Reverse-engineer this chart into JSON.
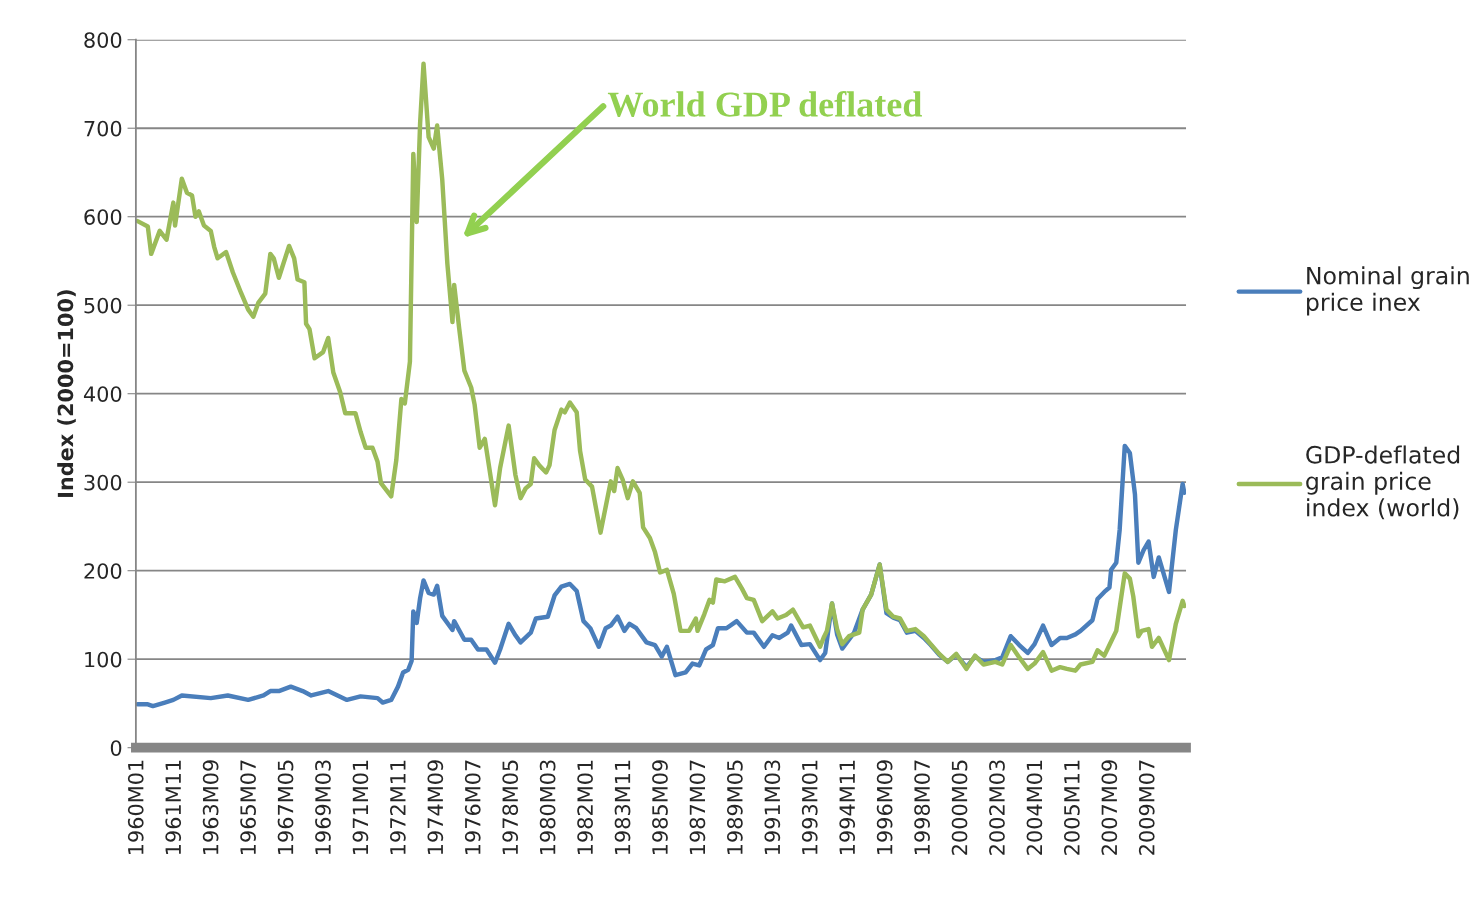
{
  "chart_data": {
    "type": "line",
    "ylabel": "Index (2000=100)",
    "ylim": [
      0,
      800
    ],
    "yticks": [
      0,
      100,
      200,
      300,
      400,
      500,
      600,
      700,
      800
    ],
    "xlim": [
      "1959-12",
      "2011-05"
    ],
    "xticks": [
      {
        "value": "1960-01",
        "label": "1960M01"
      },
      {
        "value": "1961-11",
        "label": "1961M11"
      },
      {
        "value": "1963-09",
        "label": "1963M09"
      },
      {
        "value": "1965-07",
        "label": "1965M07"
      },
      {
        "value": "1967-05",
        "label": "1967M05"
      },
      {
        "value": "1969-03",
        "label": "1969M03"
      },
      {
        "value": "1971-01",
        "label": "1971M01"
      },
      {
        "value": "1972-11",
        "label": "1972M11"
      },
      {
        "value": "1974-09",
        "label": "1974M09"
      },
      {
        "value": "1976-07",
        "label": "1976M07"
      },
      {
        "value": "1978-05",
        "label": "1978M05"
      },
      {
        "value": "1980-03",
        "label": "1980M03"
      },
      {
        "value": "1982-01",
        "label": "1982M01"
      },
      {
        "value": "1983-11",
        "label": "1983M11"
      },
      {
        "value": "1985-09",
        "label": "1985M09"
      },
      {
        "value": "1987-07",
        "label": "1987M07"
      },
      {
        "value": "1989-05",
        "label": "1989M05"
      },
      {
        "value": "1991-03",
        "label": "1991M03"
      },
      {
        "value": "1993-01",
        "label": "1993M01"
      },
      {
        "value": "1994-11",
        "label": "1994M11"
      },
      {
        "value": "1996-09",
        "label": "1996M09"
      },
      {
        "value": "1998-07",
        "label": "1998M07"
      },
      {
        "value": "2000-05",
        "label": "2000M05"
      },
      {
        "value": "2002-03",
        "label": "2002M03"
      },
      {
        "value": "2004-01",
        "label": "2004M01"
      },
      {
        "value": "2005-11",
        "label": "2005M11"
      },
      {
        "value": "2007-09",
        "label": "2007M09"
      },
      {
        "value": "2009-07",
        "label": "2009M07"
      }
    ],
    "grid": "y",
    "legend": "right",
    "marker": "none",
    "line_style": "solid",
    "annotations": [
      "World GDP deflated"
    ],
    "series": [
      {
        "name": "Nominal grain price inex",
        "color": "#4a7ebb",
        "x": [
          "1960-01",
          "1960-07",
          "1960-10",
          "1961-05",
          "1961-10",
          "1962-03",
          "1963-08",
          "1964-06",
          "1965-06",
          "1966-03",
          "1966-07",
          "1966-12",
          "1967-07",
          "1968-02",
          "1968-07",
          "1969-05",
          "1970-04",
          "1970-12",
          "1971-10",
          "1972-01",
          "1972-06",
          "1972-10",
          "1973-01",
          "1973-04",
          "1973-06",
          "1973-07",
          "1973-09",
          "1973-11",
          "1974-01",
          "1974-04",
          "1974-07",
          "1974-09",
          "1974-12",
          "1975-06",
          "1975-07",
          "1976-01",
          "1976-05",
          "1976-09",
          "1977-02",
          "1977-07",
          "1977-10",
          "1978-03",
          "1978-07",
          "1978-10",
          "1979-04",
          "1979-07",
          "1980-02",
          "1980-06",
          "1980-10",
          "1981-03",
          "1981-07",
          "1981-11",
          "1982-03",
          "1982-08",
          "1982-12",
          "1983-03",
          "1983-07",
          "1983-11",
          "1984-02",
          "1984-06",
          "1984-12",
          "1985-05",
          "1985-09",
          "1985-12",
          "1986-05",
          "1986-11",
          "1987-03",
          "1987-07",
          "1987-11",
          "1988-03",
          "1988-06",
          "1988-11",
          "1989-05",
          "1989-11",
          "1990-03",
          "1990-09",
          "1991-02",
          "1991-06",
          "1991-11",
          "1992-01",
          "1992-07",
          "1992-12",
          "1993-06",
          "1993-09",
          "1994-01",
          "1994-04",
          "1994-07",
          "1995-02",
          "1995-07",
          "1995-12",
          "1996-05",
          "1996-09",
          "1997-01",
          "1997-05",
          "1997-09",
          "1998-02",
          "1998-07",
          "1998-11",
          "1999-04",
          "1999-09",
          "2000-02",
          "2000-08",
          "2001-01",
          "2001-06",
          "2002-01",
          "2002-05",
          "2002-10",
          "2003-03",
          "2003-08",
          "2003-12",
          "2004-05",
          "2004-10",
          "2005-03",
          "2005-07",
          "2005-12",
          "2006-03",
          "2006-10",
          "2007-01",
          "2007-05",
          "2007-08",
          "2007-09",
          "2007-12",
          "2008-02",
          "2008-05",
          "2008-08",
          "2008-11",
          "2009-01",
          "2009-04",
          "2009-07",
          "2009-10",
          "2010-01",
          "2010-07",
          "2010-11",
          "2011-03",
          "2011-04"
        ],
        "values": [
          49,
          49,
          47,
          51,
          54,
          59,
          56,
          59,
          54,
          59,
          64,
          64,
          69,
          64,
          59,
          64,
          54,
          58,
          56,
          51,
          54,
          69,
          85,
          88,
          98,
          154,
          141,
          169,
          189,
          175,
          173,
          183,
          149,
          133,
          143,
          122,
          122,
          111,
          111,
          96,
          111,
          140,
          127,
          119,
          130,
          146,
          148,
          172,
          182,
          185,
          177,
          143,
          135,
          114,
          135,
          138,
          148,
          132,
          140,
          135,
          119,
          116,
          103,
          114,
          82,
          85,
          95,
          93,
          111,
          116,
          135,
          135,
          143,
          130,
          130,
          114,
          127,
          124,
          130,
          138,
          116,
          117,
          99,
          107,
          163,
          128,
          112,
          130,
          156,
          173,
          207,
          152,
          147,
          144,
          130,
          132,
          124,
          116,
          105,
          97,
          105,
          91,
          103,
          97,
          99,
          102,
          126,
          116,
          107,
          117,
          138,
          116,
          124,
          124,
          128,
          132,
          144,
          168,
          176,
          181,
          201,
          209,
          246,
          341,
          333,
          286,
          209,
          223,
          233,
          193,
          215,
          176,
          246,
          298,
          288
        ]
      },
      {
        "name": "GDP-deflated grain price index (world)",
        "color": "#9bbb59",
        "x": [
          "1960-01",
          "1960-07",
          "1960-09",
          "1961-02",
          "1961-06",
          "1961-10",
          "1961-11",
          "1962-03",
          "1962-06",
          "1962-09",
          "1962-11",
          "1963-01",
          "1963-04",
          "1963-08",
          "1963-10",
          "1963-12",
          "1964-05",
          "1964-09",
          "1965-02",
          "1965-06",
          "1965-09",
          "1965-12",
          "1966-04",
          "1966-07",
          "1966-09",
          "1966-12",
          "1967-06",
          "1967-09",
          "1967-11",
          "1968-03",
          "1968-04",
          "1968-06",
          "1968-09",
          "1969-02",
          "1969-05",
          "1969-08",
          "1969-12",
          "1970-03",
          "1970-09",
          "1970-12",
          "1971-03",
          "1971-07",
          "1971-10",
          "1971-12",
          "1972-06",
          "1972-09",
          "1972-12",
          "1973-02",
          "1973-05",
          "1973-07",
          "1973-09",
          "1973-11",
          "1974-01",
          "1974-04",
          "1974-07",
          "1974-09",
          "1974-12",
          "1975-03",
          "1975-06",
          "1975-07",
          "1975-10",
          "1976-01",
          "1976-05",
          "1976-07",
          "1976-10",
          "1977-01",
          "1977-07",
          "1977-10",
          "1978-03",
          "1978-07",
          "1978-10",
          "1979-01",
          "1979-04",
          "1979-06",
          "1979-09",
          "1980-01",
          "1980-03",
          "1980-06",
          "1980-10",
          "1980-12",
          "1981-03",
          "1981-07",
          "1981-09",
          "1981-12",
          "1982-04",
          "1982-09",
          "1982-12",
          "1983-03",
          "1983-05",
          "1983-07",
          "1983-10",
          "1984-01",
          "1984-04",
          "1984-08",
          "1984-10",
          "1985-02",
          "1985-05",
          "1985-08",
          "1985-12",
          "1986-04",
          "1986-08",
          "1987-01",
          "1987-05",
          "1987-06",
          "1987-10",
          "1988-01",
          "1988-03",
          "1988-05",
          "1988-10",
          "1989-04",
          "1989-08",
          "1989-11",
          "1990-03",
          "1990-08",
          "1991-02",
          "1991-05",
          "1991-10",
          "1992-02",
          "1992-08",
          "1992-12",
          "1993-06",
          "1993-08",
          "1993-10",
          "1994-01",
          "1994-04",
          "1994-07",
          "1994-11",
          "1995-05",
          "1995-07",
          "1995-12",
          "1996-05",
          "1996-09",
          "1997-01",
          "1997-05",
          "1997-09",
          "1998-02",
          "1998-07",
          "1998-11",
          "1999-04",
          "1999-09",
          "2000-02",
          "2000-08",
          "2001-01",
          "2001-06",
          "2002-01",
          "2002-05",
          "2002-10",
          "2003-03",
          "2003-08",
          "2003-12",
          "2004-05",
          "2004-10",
          "2005-03",
          "2005-07",
          "2005-12",
          "2006-03",
          "2006-10",
          "2007-01",
          "2007-05",
          "2007-08",
          "2007-12",
          "2008-05",
          "2008-08",
          "2008-10",
          "2009-01",
          "2009-03",
          "2009-07",
          "2009-09",
          "2010-01",
          "2010-07",
          "2010-11",
          "2011-03",
          "2011-04"
        ],
        "values": [
          595,
          589,
          558,
          584,
          574,
          616,
          590,
          643,
          627,
          624,
          600,
          606,
          590,
          584,
          566,
          553,
          560,
          537,
          513,
          495,
          487,
          503,
          513,
          558,
          553,
          531,
          567,
          553,
          529,
          526,
          479,
          473,
          440,
          447,
          463,
          424,
          402,
          378,
          378,
          357,
          339,
          339,
          323,
          299,
          284,
          325,
          394,
          389,
          436,
          671,
          594,
          706,
          773,
          690,
          677,
          703,
          642,
          547,
          481,
          523,
          473,
          426,
          407,
          388,
          339,
          349,
          274,
          316,
          364,
          308,
          282,
          293,
          298,
          327,
          319,
          311,
          319,
          359,
          382,
          379,
          390,
          379,
          335,
          303,
          295,
          243,
          272,
          301,
          290,
          316,
          303,
          282,
          301,
          288,
          249,
          237,
          221,
          198,
          201,
          174,
          132,
          132,
          146,
          132,
          151,
          167,
          164,
          190,
          188,
          193,
          180,
          169,
          167,
          143,
          154,
          146,
          150,
          156,
          136,
          138,
          114,
          124,
          132,
          163,
          134,
          117,
          126,
          130,
          156,
          173,
          207,
          156,
          148,
          146,
          132,
          134,
          126,
          117,
          106,
          97,
          106,
          89,
          104,
          94,
          97,
          94,
          116,
          102,
          89,
          95,
          108,
          87,
          91,
          89,
          87,
          94,
          97,
          110,
          104,
          116,
          132,
          197,
          191,
          171,
          126,
          132,
          134,
          114,
          124,
          99,
          140,
          166,
          160
        ]
      }
    ]
  }
}
